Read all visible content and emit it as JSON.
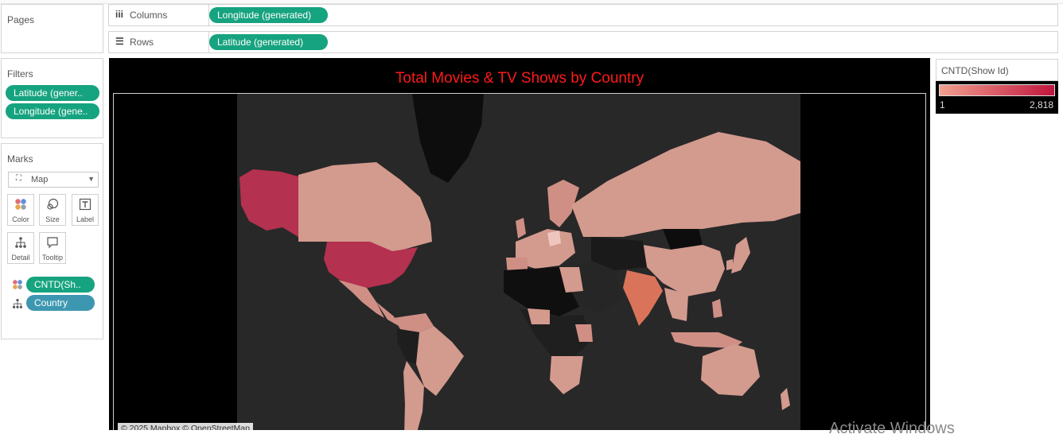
{
  "pages": {
    "title": "Pages"
  },
  "columns": {
    "label": "Columns",
    "icon": "iii",
    "pill": "Longitude (generated)"
  },
  "rows": {
    "label": "Rows",
    "icon": "☰",
    "pill": "Latitude (generated)"
  },
  "filters": {
    "title": "Filters",
    "items": [
      "Latitude (gener..",
      "Longitude (gene.."
    ]
  },
  "marks": {
    "title": "Marks",
    "mark_type": "Map",
    "buttons": {
      "color": "Color",
      "size": "Size",
      "label": "Label",
      "detail": "Detail",
      "tooltip": "Tooltip"
    },
    "fields": {
      "color_field": "CNTD(Sh..",
      "detail_field": "Country"
    }
  },
  "viz": {
    "title": "Total Movies & TV Shows by Country",
    "attribution": "© 2025 Mapbox © OpenStreetMap"
  },
  "legend": {
    "title": "CNTD(Show Id)",
    "min": "1",
    "max": "2,818",
    "color_low": "#f2a08f",
    "color_high": "#c0163e"
  },
  "colors": {
    "pill_green": "#16a37f",
    "pill_teal": "#3e97b1",
    "title_red": "#ff1a1a",
    "map_bg": "#282828"
  },
  "watermark": "Activate Windows"
}
